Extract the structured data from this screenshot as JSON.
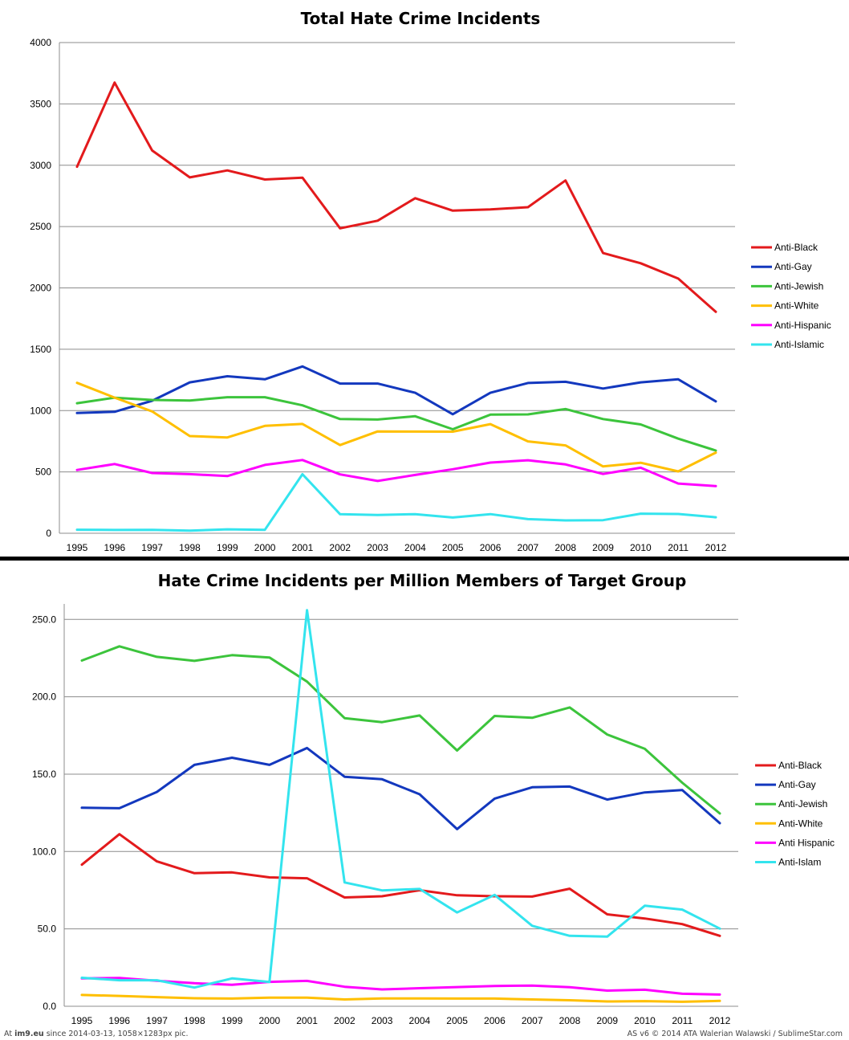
{
  "chart_data": [
    {
      "type": "line",
      "title": "Total Hate Crime Incidents",
      "x": [
        "1995",
        "1996",
        "1997",
        "1998",
        "1999",
        "2000",
        "2001",
        "2002",
        "2003",
        "2004",
        "2005",
        "2006",
        "2007",
        "2008",
        "2009",
        "2010",
        "2011",
        "2012"
      ],
      "ylim": [
        0,
        4000
      ],
      "yticks": [
        "0",
        "500",
        "1000",
        "1500",
        "2000",
        "2500",
        "3000",
        "3500",
        "4000"
      ],
      "grid": true,
      "legend_position": "right",
      "series": [
        {
          "name": "Anti-Black",
          "color": "#e31a1c",
          "values": [
            2988,
            3674,
            3120,
            2901,
            2958,
            2884,
            2899,
            2486,
            2548,
            2731,
            2630,
            2640,
            2658,
            2876,
            2284,
            2201,
            2076,
            1805
          ]
        },
        {
          "name": "Anti-Gay",
          "color": "#1338be",
          "values": [
            980,
            990,
            1080,
            1230,
            1280,
            1255,
            1360,
            1220,
            1220,
            1145,
            970,
            1145,
            1225,
            1235,
            1180,
            1230,
            1255,
            1075
          ]
        },
        {
          "name": "Anti-Jewish",
          "color": "#3cc43c",
          "values": [
            1060,
            1105,
            1087,
            1082,
            1109,
            1109,
            1043,
            931,
            927,
            954,
            848,
            967,
            969,
            1013,
            931,
            887,
            771,
            674
          ]
        },
        {
          "name": "Anti-White",
          "color": "#ffbf00",
          "values": [
            1226,
            1106,
            993,
            792,
            781,
            875,
            891,
            719,
            830,
            829,
            828,
            890,
            749,
            716,
            545,
            575,
            504,
            657
          ]
        },
        {
          "name": "Anti-Hispanic",
          "color": "#ff00ff",
          "values": [
            516,
            564,
            491,
            482,
            466,
            557,
            597,
            480,
            426,
            475,
            522,
            576,
            595,
            561,
            483,
            534,
            405,
            384
          ]
        },
        {
          "name": "Anti-Islamic",
          "color": "#33e4ee",
          "values": [
            29,
            27,
            28,
            21,
            32,
            28,
            481,
            155,
            149,
            156,
            128,
            156,
            115,
            105,
            107,
            160,
            157,
            130
          ]
        }
      ]
    },
    {
      "type": "line",
      "title": "Hate Crime Incidents per Million Members of Target Group",
      "x": [
        "1995",
        "1996",
        "1997",
        "1998",
        "1999",
        "2000",
        "2001",
        "2002",
        "2003",
        "2004",
        "2005",
        "2006",
        "2007",
        "2008",
        "2009",
        "2010",
        "2011",
        "2012"
      ],
      "ylim": [
        0,
        260
      ],
      "yticks": [
        "0.0",
        "50.0",
        "100.0",
        "150.0",
        "200.0",
        "250.0"
      ],
      "grid": true,
      "legend_position": "right",
      "series": [
        {
          "name": "Anti-Black",
          "color": "#e31a1c",
          "values": [
            91.5,
            111.2,
            93.6,
            86.0,
            86.5,
            83.3,
            82.7,
            70.3,
            71.1,
            75.0,
            71.7,
            71.1,
            70.9,
            76.0,
            59.4,
            56.7,
            53.1,
            45.5
          ]
        },
        {
          "name": "Anti-Gay",
          "color": "#1338be",
          "values": [
            128.3,
            128.0,
            138.5,
            156.0,
            160.6,
            156.0,
            166.9,
            148.3,
            146.7,
            137.0,
            114.5,
            134.2,
            141.5,
            142.0,
            133.6,
            138.2,
            139.7,
            118.3
          ]
        },
        {
          "name": "Anti-Jewish",
          "color": "#3cc43c",
          "values": [
            223.4,
            232.6,
            225.8,
            223.2,
            226.9,
            225.4,
            209.8,
            186.2,
            183.6,
            187.9,
            165.3,
            187.6,
            186.4,
            193.1,
            175.6,
            166.4,
            144.5,
            124.6
          ]
        },
        {
          "name": "Anti-White",
          "color": "#ffbf00",
          "values": [
            7.3,
            6.7,
            5.9,
            5.2,
            5.0,
            5.6,
            5.6,
            4.4,
            5.1,
            5.1,
            5.0,
            5.0,
            4.4,
            3.9,
            3.1,
            3.3,
            2.9,
            3.5
          ]
        },
        {
          "name": "Anti Hispanic",
          "color": "#ff00ff",
          "values": [
            18.0,
            18.3,
            16.5,
            14.9,
            13.9,
            15.8,
            16.4,
            12.6,
            10.9,
            11.7,
            12.4,
            13.1,
            13.4,
            12.3,
            10.1,
            10.7,
            8.1,
            7.6
          ]
        },
        {
          "name": "Anti-Islam",
          "color": "#33e4ee",
          "values": [
            18.4,
            16.8,
            16.8,
            12.1,
            18.0,
            15.7,
            256.0,
            80.0,
            74.9,
            75.8,
            60.6,
            72.0,
            52.0,
            45.5,
            45.0,
            65.0,
            62.5,
            50.2
          ]
        }
      ]
    }
  ],
  "footer": {
    "left_prefix": "At ",
    "left_site": "im9.eu",
    "left_rest": "  since 2014-03-13, 1058×1283px pic.",
    "right": "AS v6 © 2014 ATA Walerian Walawski / SublimeStar.com"
  }
}
